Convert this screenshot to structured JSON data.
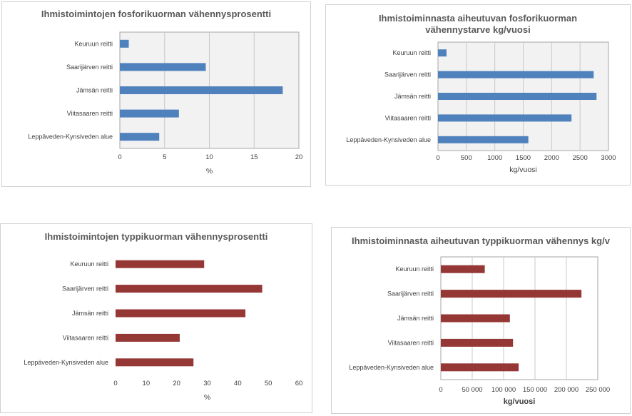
{
  "chart_data": [
    {
      "type": "bar",
      "orientation": "horizontal",
      "title": "Ihmistoimintojen fosforikuorman vähennysprosentti",
      "categories": [
        "Keuruun reitti",
        "Saarijärven reitti",
        "Jämsän reitti",
        "Viitasaaren reitti",
        "Leppäveden-Kynsiveden alue"
      ],
      "values": [
        1.0,
        9.6,
        18.2,
        6.6,
        4.4
      ],
      "xlabel": "%",
      "xlim": [
        0,
        20
      ],
      "ticks": [
        0,
        5,
        10,
        15,
        20
      ],
      "tick_labels": [
        "0",
        "5",
        "10",
        "15",
        "20"
      ],
      "grid": true,
      "plot_background": "#f2f2f2",
      "color": "#4f81bd"
    },
    {
      "type": "bar",
      "orientation": "horizontal",
      "title": "Ihmistoiminnasta aiheutuvan fosforikuorman vähennystarve kg/vuosi",
      "categories": [
        "Keuruun reitti",
        "Saarijärven reitti",
        "Jämsän reitti",
        "Viitasaaren reitti",
        "Leppäveden-Kynsiveden alue"
      ],
      "values": [
        150,
        2740,
        2790,
        2350,
        1590
      ],
      "xlabel": "kg/vuosi",
      "xlim": [
        0,
        3000
      ],
      "ticks": [
        0,
        500,
        1000,
        1500,
        2000,
        2500,
        3000
      ],
      "tick_labels": [
        "0",
        "500",
        "1000",
        "1500",
        "2000",
        "2500",
        "3000"
      ],
      "grid": true,
      "plot_background": "#f2f2f2",
      "color": "#4f81bd"
    },
    {
      "type": "bar",
      "orientation": "horizontal",
      "title": "Ihmistoimintojen typpikuorman vähennysprosentti",
      "categories": [
        "Keuruun reitti",
        "Saarijärven reitti",
        "Jämsän reitti",
        "Viitasaaren reitti",
        "Leppäveden-Kynsiveden alue"
      ],
      "values": [
        29,
        48,
        42.5,
        21,
        25.5
      ],
      "xlabel": "%",
      "xlim": [
        0,
        60
      ],
      "ticks": [
        0,
        10,
        20,
        30,
        40,
        50,
        60
      ],
      "tick_labels": [
        "0",
        "10",
        "20",
        "30",
        "40",
        "50",
        "60"
      ],
      "grid": false,
      "plot_background": "#ffffff",
      "color": "#953735"
    },
    {
      "type": "bar",
      "orientation": "horizontal",
      "title": "Ihmistoiminnasta aiheutuvan typpikuorman vähennys kg/v",
      "categories": [
        "Keuruun reitti",
        "Saarijärven reitti",
        "Jämsän reitti",
        "Viitasaaren reitti",
        "Leppäveden-Kynsiveden alue"
      ],
      "values": [
        70000,
        224000,
        110000,
        115000,
        124000
      ],
      "xlabel": "kg/vuosi",
      "xlim": [
        0,
        250000
      ],
      "ticks": [
        0,
        50000,
        100000,
        150000,
        200000,
        250000
      ],
      "tick_labels": [
        "0",
        "50 000",
        "100 000",
        "150 000",
        "200 000",
        "250 000"
      ],
      "grid": true,
      "plot_background": "#ffffff",
      "color": "#953735"
    }
  ]
}
